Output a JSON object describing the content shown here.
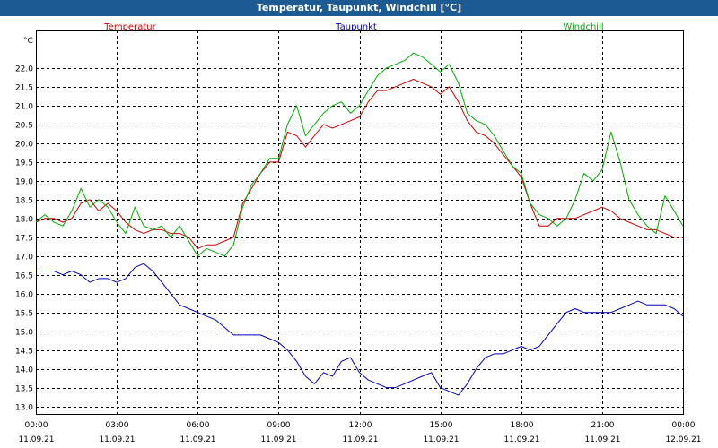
{
  "window": {
    "title": "Temperatur, Taupunkt, Windchill [°C]"
  },
  "chart_data": {
    "type": "line",
    "unit_label": "°C",
    "ylim": [
      12.8,
      23.0
    ],
    "yticks": [
      13.0,
      13.5,
      14.0,
      14.5,
      15.0,
      15.5,
      16.0,
      16.5,
      17.0,
      17.5,
      18.0,
      18.5,
      19.0,
      19.5,
      20.0,
      20.5,
      21.0,
      21.5,
      22.0
    ],
    "ytick_labels": [
      "13.0",
      "13.5",
      "14.0",
      "14.5",
      "15.0",
      "15.5",
      "16.0",
      "16.5",
      "17.0",
      "17.5",
      "18.0",
      "18.5",
      "19.0",
      "19.5",
      "20.0",
      "20.5",
      "21.0",
      "21.5",
      "22.0"
    ],
    "xlim": [
      0,
      24
    ],
    "xticks": [
      0,
      3,
      6,
      9,
      12,
      15,
      18,
      21,
      24
    ],
    "xtick_time_labels": [
      "00:00",
      "03:00",
      "06:00",
      "09:00",
      "12:00",
      "15:00",
      "18:00",
      "21:00",
      "00:00"
    ],
    "xtick_date_labels": [
      "11.09.21",
      "11.09.21",
      "11.09.21",
      "11.09.21",
      "11.09.21",
      "11.09.21",
      "11.09.21",
      "11.09.21",
      "12.09.21"
    ],
    "grid": true,
    "series": [
      {
        "name": "Temperatur",
        "color": "#cc0000",
        "x": [
          0,
          0.33,
          0.67,
          1,
          1.33,
          1.67,
          2,
          2.33,
          2.67,
          3,
          3.33,
          3.67,
          4,
          4.33,
          4.67,
          5,
          5.33,
          5.67,
          6,
          6.33,
          6.67,
          7,
          7.33,
          7.67,
          8,
          8.33,
          8.67,
          9,
          9.33,
          9.67,
          10,
          10.33,
          10.67,
          11,
          11.33,
          11.67,
          12,
          12.33,
          12.67,
          13,
          13.33,
          13.67,
          14,
          14.33,
          14.67,
          15,
          15.33,
          15.67,
          16,
          16.33,
          16.67,
          17,
          17.33,
          17.67,
          18,
          18.33,
          18.67,
          19,
          19.33,
          19.67,
          20,
          20.33,
          20.67,
          21,
          21.33,
          21.67,
          22,
          22.33,
          22.67,
          23,
          23.33,
          23.67,
          24
        ],
        "y": [
          17.9,
          18.0,
          18.0,
          17.9,
          18.0,
          18.4,
          18.5,
          18.2,
          18.4,
          18.2,
          17.9,
          17.7,
          17.6,
          17.7,
          17.7,
          17.6,
          17.6,
          17.5,
          17.2,
          17.3,
          17.3,
          17.4,
          17.5,
          18.4,
          18.8,
          19.2,
          19.5,
          19.5,
          20.3,
          20.2,
          19.9,
          20.2,
          20.5,
          20.4,
          20.5,
          20.6,
          20.7,
          21.1,
          21.4,
          21.4,
          21.5,
          21.6,
          21.7,
          21.6,
          21.5,
          21.3,
          21.5,
          21.1,
          20.6,
          20.3,
          20.2,
          20.0,
          19.7,
          19.4,
          19.1,
          18.4,
          17.8,
          17.8,
          18.0,
          18.0,
          18.0,
          18.1,
          18.2,
          18.3,
          18.2,
          18.0,
          17.9,
          17.8,
          17.7,
          17.7,
          17.6,
          17.5,
          17.5
        ]
      },
      {
        "name": "Taupunkt",
        "color": "#0000bb",
        "x": [
          0,
          0.33,
          0.67,
          1,
          1.33,
          1.67,
          2,
          2.33,
          2.67,
          3,
          3.33,
          3.67,
          4,
          4.33,
          4.67,
          5,
          5.33,
          5.67,
          6,
          6.33,
          6.67,
          7,
          7.33,
          7.67,
          8,
          8.33,
          8.67,
          9,
          9.33,
          9.67,
          10,
          10.33,
          10.67,
          11,
          11.33,
          11.67,
          12,
          12.33,
          12.67,
          13,
          13.33,
          13.67,
          14,
          14.33,
          14.67,
          15,
          15.33,
          15.67,
          16,
          16.33,
          16.67,
          17,
          17.33,
          17.67,
          18,
          18.33,
          18.67,
          19,
          19.33,
          19.67,
          20,
          20.33,
          20.67,
          21,
          21.33,
          21.67,
          22,
          22.33,
          22.67,
          23,
          23.33,
          23.67,
          24
        ],
        "y": [
          16.6,
          16.6,
          16.6,
          16.5,
          16.6,
          16.5,
          16.3,
          16.4,
          16.4,
          16.3,
          16.4,
          16.7,
          16.8,
          16.6,
          16.3,
          16.0,
          15.7,
          15.6,
          15.5,
          15.4,
          15.3,
          15.1,
          14.9,
          14.9,
          14.9,
          14.9,
          14.8,
          14.7,
          14.5,
          14.2,
          13.8,
          13.6,
          13.9,
          13.8,
          14.2,
          14.3,
          13.9,
          13.7,
          13.6,
          13.5,
          13.5,
          13.6,
          13.7,
          13.8,
          13.9,
          13.5,
          13.4,
          13.3,
          13.6,
          14.0,
          14.3,
          14.4,
          14.4,
          14.5,
          14.6,
          14.5,
          14.6,
          14.9,
          15.2,
          15.5,
          15.6,
          15.5,
          15.5,
          15.5,
          15.5,
          15.6,
          15.7,
          15.8,
          15.7,
          15.7,
          15.7,
          15.6,
          15.4
        ]
      },
      {
        "name": "Windchill",
        "color": "#00aa00",
        "x": [
          0,
          0.33,
          0.67,
          1,
          1.33,
          1.67,
          2,
          2.33,
          2.67,
          3,
          3.33,
          3.67,
          4,
          4.33,
          4.67,
          5,
          5.33,
          5.67,
          6,
          6.33,
          6.67,
          7,
          7.33,
          7.67,
          8,
          8.33,
          8.67,
          9,
          9.33,
          9.67,
          10,
          10.33,
          10.67,
          11,
          11.33,
          11.67,
          12,
          12.33,
          12.67,
          13,
          13.33,
          13.67,
          14,
          14.33,
          14.67,
          15,
          15.33,
          15.67,
          16,
          16.33,
          16.67,
          17,
          17.33,
          17.67,
          18,
          18.33,
          18.67,
          19,
          19.33,
          19.67,
          20,
          20.33,
          20.67,
          21,
          21.33,
          21.67,
          22,
          22.33,
          22.67,
          23,
          23.33,
          23.67,
          24
        ],
        "y": [
          17.9,
          18.1,
          17.9,
          17.8,
          18.2,
          18.8,
          18.3,
          18.5,
          18.3,
          17.9,
          17.6,
          18.3,
          17.8,
          17.7,
          17.8,
          17.5,
          17.8,
          17.4,
          17.0,
          17.2,
          17.1,
          17.0,
          17.3,
          18.3,
          18.9,
          19.2,
          19.6,
          19.6,
          20.5,
          21.0,
          20.2,
          20.5,
          20.8,
          21.0,
          21.1,
          20.8,
          21.0,
          21.4,
          21.8,
          22.0,
          22.1,
          22.2,
          22.4,
          22.3,
          22.1,
          21.9,
          22.1,
          21.6,
          20.8,
          20.6,
          20.5,
          20.2,
          19.8,
          19.4,
          19.2,
          18.4,
          18.1,
          18.0,
          17.8,
          18.0,
          18.5,
          19.2,
          19.0,
          19.3,
          20.3,
          19.5,
          18.5,
          18.1,
          17.8,
          17.6,
          18.6,
          18.2,
          17.8
        ]
      }
    ]
  }
}
